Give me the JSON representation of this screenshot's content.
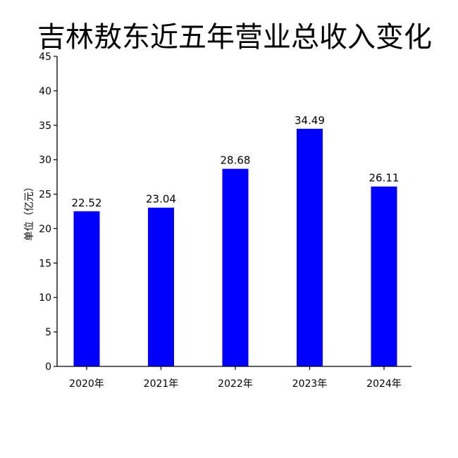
{
  "chart_data": {
    "type": "bar",
    "title": "吉林敖东近五年营业总收入变化",
    "xlabel": "",
    "ylabel": "单位（亿元）",
    "categories": [
      "2020年",
      "2021年",
      "2022年",
      "2023年",
      "2024年"
    ],
    "values": [
      22.52,
      23.04,
      28.68,
      34.49,
      26.11
    ],
    "data_labels": [
      "22.52",
      "23.04",
      "28.68",
      "34.49",
      "26.11"
    ],
    "ylim": [
      0,
      45
    ],
    "yticks": [
      0,
      5,
      10,
      15,
      20,
      25,
      30,
      35,
      40,
      45
    ],
    "bar_color": "#0000ff",
    "grid": false,
    "legend": "none"
  }
}
